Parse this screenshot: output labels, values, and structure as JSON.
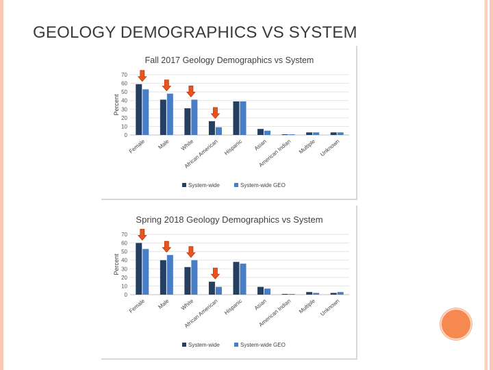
{
  "slide": {
    "title": "GEOLOGY DEMOGRAPHICS VS SYSTEM"
  },
  "colors": {
    "system_wide": "#243f60",
    "system_wide_geo": "#4a7ec4",
    "arrow": "#e8541e",
    "accent_circle": "#f6894f",
    "rail": "#f7c9b6"
  },
  "chart_data": [
    {
      "type": "bar",
      "title": "Fall 2017 Geology Demographics vs System",
      "xlabel": "",
      "ylabel": "Percent",
      "ylim": [
        0,
        70
      ],
      "yticks": [
        0,
        10,
        20,
        30,
        40,
        50,
        60,
        70
      ],
      "grid": true,
      "legend_position": "bottom",
      "categories": [
        "Female",
        "Male",
        "White",
        "African American",
        "Hispanic",
        "Asian",
        "American Indian",
        "Multiple",
        "Unknown"
      ],
      "series": [
        {
          "name": "System-wide",
          "values": [
            59,
            41,
            31,
            16,
            39,
            7,
            0.5,
            3,
            3
          ]
        },
        {
          "name": "System-wide GEO",
          "values": [
            53,
            48,
            41,
            9,
            39,
            5,
            0.5,
            3,
            3
          ]
        }
      ],
      "annotations": [
        "arrow-female",
        "arrow-male",
        "arrow-white",
        "arrow-african-american"
      ]
    },
    {
      "type": "bar",
      "title": "Spring 2018 Geology Demographics vs System",
      "xlabel": "",
      "ylabel": "Percent",
      "ylim": [
        0,
        70
      ],
      "yticks": [
        0,
        10,
        20,
        30,
        40,
        50,
        60,
        70
      ],
      "grid": true,
      "legend_position": "bottom",
      "categories": [
        "Female",
        "Male",
        "White",
        "African American",
        "Hispanic",
        "Asian",
        "American Indian",
        "Multiple",
        "Unknown"
      ],
      "series": [
        {
          "name": "System-wide",
          "values": [
            60,
            40,
            32,
            15,
            38,
            9,
            0.5,
            3,
            2
          ]
        },
        {
          "name": "System-wide GEO",
          "values": [
            53,
            46,
            40,
            9,
            36,
            7,
            0.5,
            2,
            3
          ]
        }
      ],
      "annotations": [
        "arrow-female",
        "arrow-male",
        "arrow-white",
        "arrow-african-american"
      ]
    }
  ]
}
